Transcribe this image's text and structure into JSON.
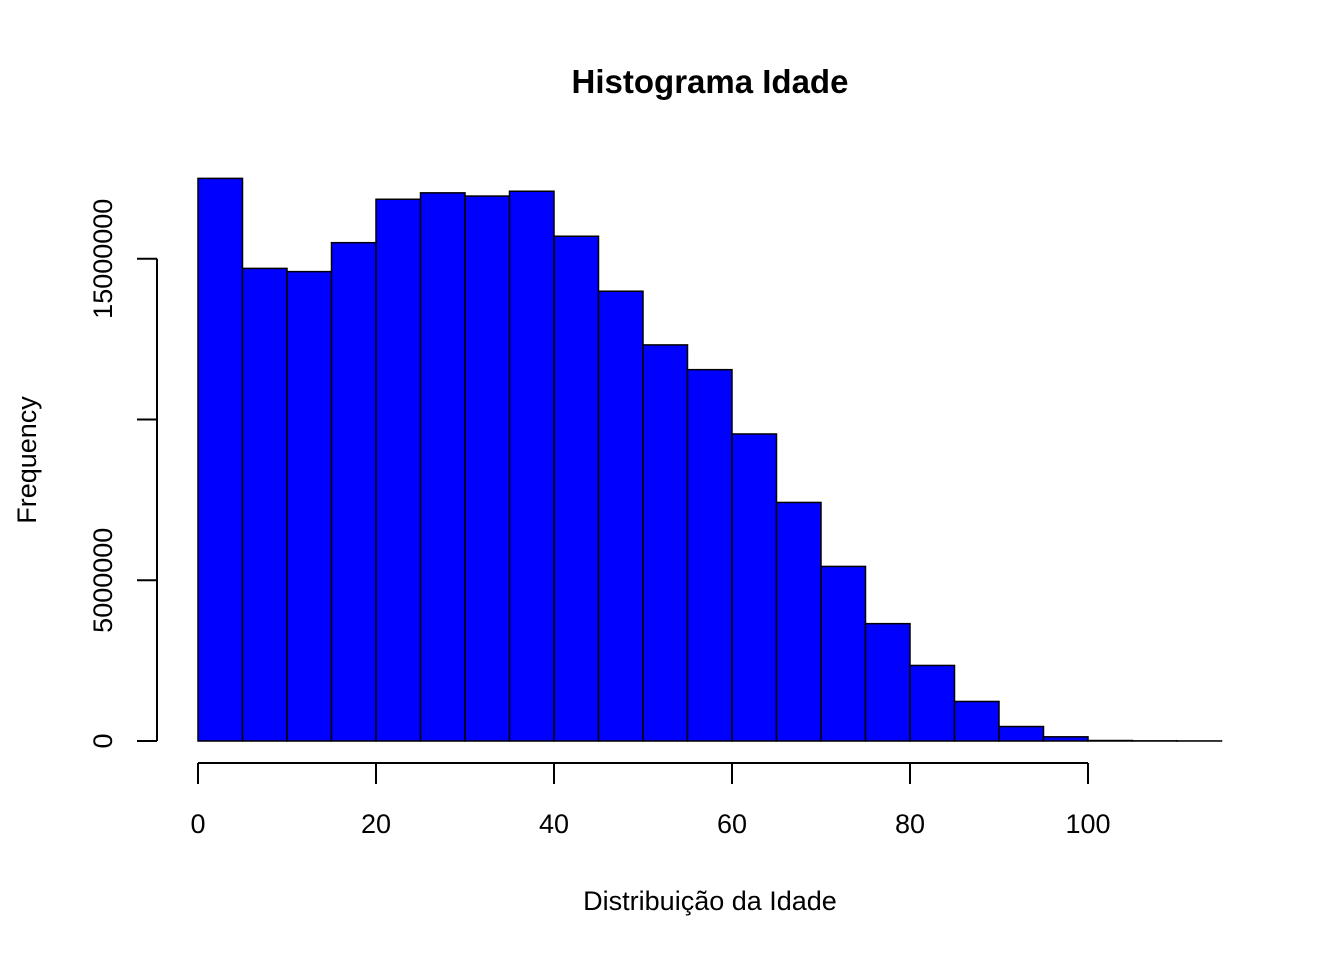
{
  "chart_data": {
    "type": "bar",
    "title": "Histograma Idade",
    "xlabel": "Distribuição da Idade",
    "ylabel": "Frequency",
    "bin_edges": [
      0,
      5,
      10,
      15,
      20,
      25,
      30,
      35,
      40,
      45,
      50,
      55,
      60,
      65,
      70,
      75,
      80,
      85,
      90,
      95,
      100,
      105,
      110,
      115
    ],
    "values": [
      17500000,
      14700000,
      14600000,
      15500000,
      16850000,
      17050000,
      16950000,
      17100000,
      15700000,
      13990000,
      12320000,
      11550000,
      9550000,
      7420000,
      5430000,
      3650000,
      2350000,
      1230000,
      450000,
      130000,
      15000,
      5000,
      2000
    ],
    "xticks": [
      0,
      20,
      40,
      60,
      80,
      100
    ],
    "xtick_labels": [
      "0",
      "20",
      "40",
      "60",
      "80",
      "100"
    ],
    "yticks": [
      0,
      5000000,
      10000000,
      15000000
    ],
    "ytick_labels": [
      "0",
      "5000000",
      "",
      "15000000"
    ],
    "xlim": [
      0,
      115
    ],
    "ylim": [
      0,
      18000000
    ],
    "bar_color": "#0000FF",
    "bar_edge_color": "#000000",
    "grid": false,
    "legend": "none"
  }
}
